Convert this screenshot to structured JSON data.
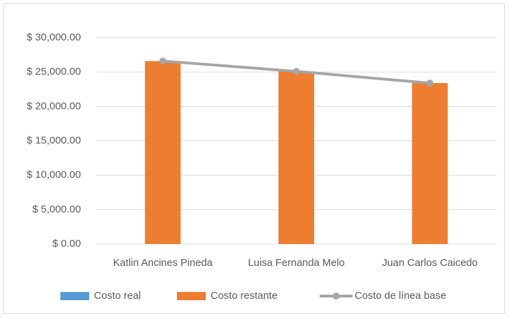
{
  "chart_data": {
    "type": "bar",
    "categories": [
      "Katlin Ancines Pineda",
      "Luisa Fernanda Melo",
      "Juan Carlos Caicedo"
    ],
    "series": [
      {
        "name": "Costo real",
        "type": "bar",
        "color": "#5b9bd5",
        "values": [
          0,
          0,
          0
        ]
      },
      {
        "name": "Costo restante",
        "type": "bar",
        "color": "#ed7d31",
        "values": [
          26600,
          25100,
          23400
        ]
      },
      {
        "name": "Costo de línea base",
        "type": "line",
        "color": "#a5a5a5",
        "values": [
          26600,
          25100,
          23400
        ]
      }
    ],
    "ylim": [
      0,
      30000
    ],
    "yticks": [
      {
        "value": 0,
        "label": "$ 0.00"
      },
      {
        "value": 5000,
        "label": "$ 5,000.00"
      },
      {
        "value": 10000,
        "label": "$ 10,000.00"
      },
      {
        "value": 15000,
        "label": "$ 15,000.00"
      },
      {
        "value": 20000,
        "label": "$ 20,000.00"
      },
      {
        "value": 25000,
        "label": "$ 25,000.00"
      },
      {
        "value": 30000,
        "label": "$ 30,000.00"
      }
    ],
    "grid": true,
    "legend": "bottom"
  }
}
